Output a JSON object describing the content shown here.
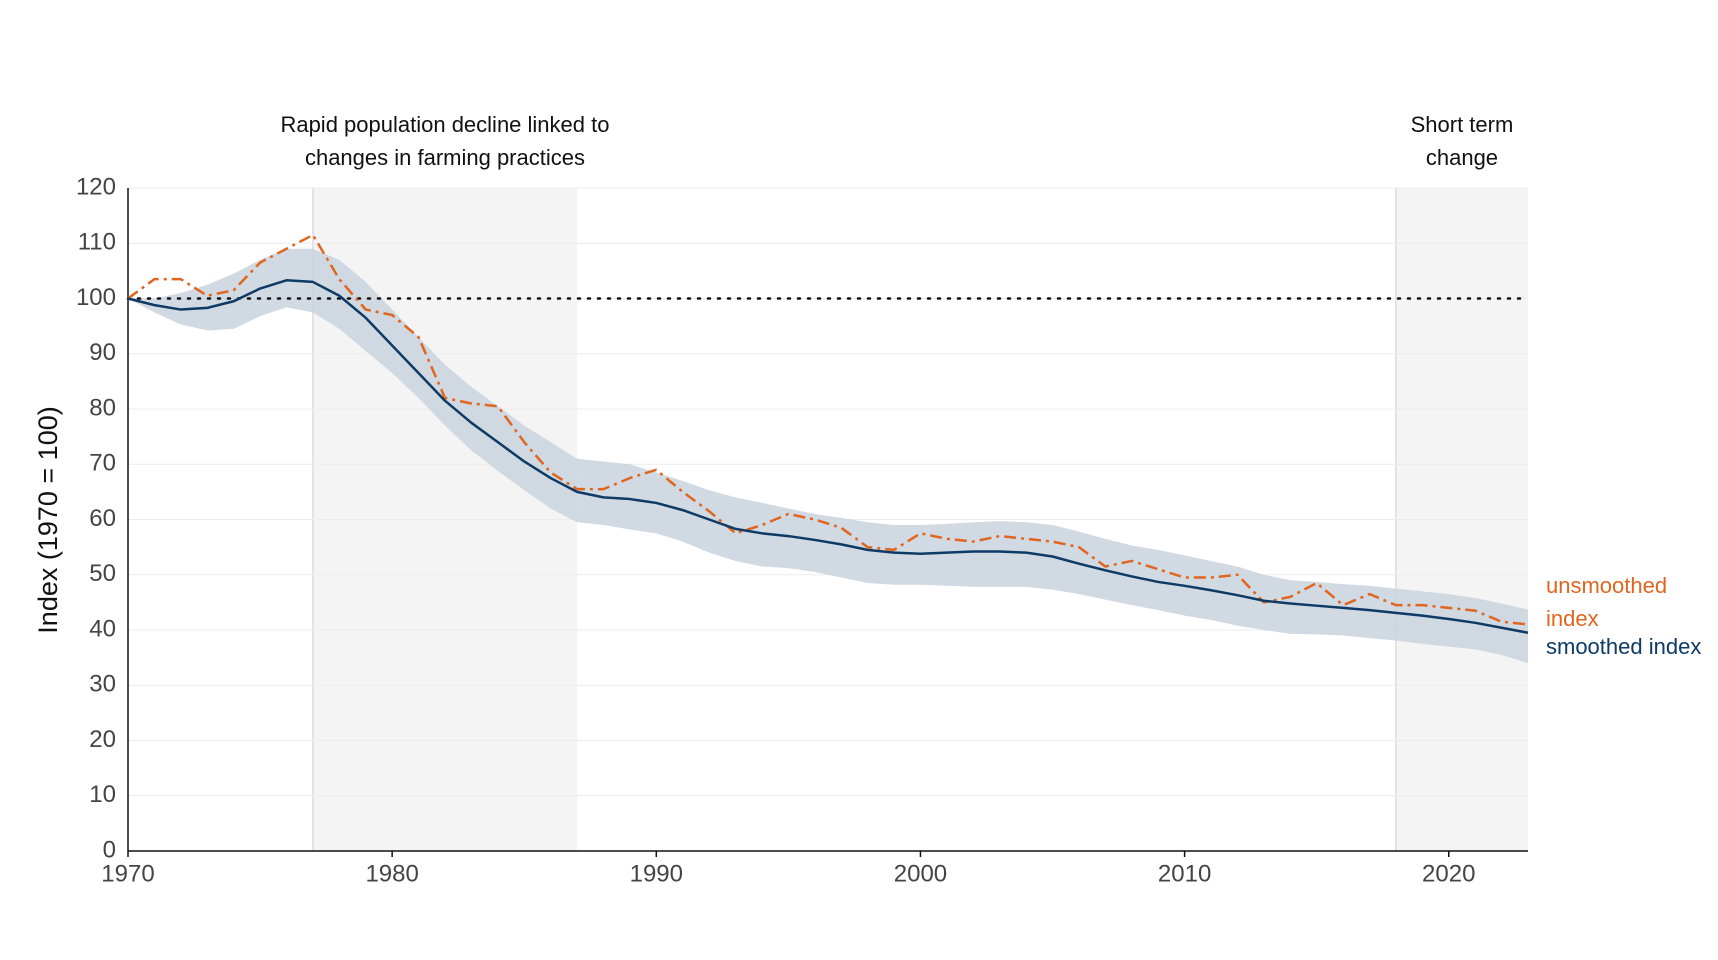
{
  "chart_data": {
    "type": "line",
    "y_label": "Index (1970 = 100)",
    "x": [
      1970,
      1971,
      1972,
      1973,
      1974,
      1975,
      1976,
      1977,
      1978,
      1979,
      1980,
      1981,
      1982,
      1983,
      1984,
      1985,
      1986,
      1987,
      1988,
      1989,
      1990,
      1991,
      1992,
      1993,
      1994,
      1995,
      1996,
      1997,
      1998,
      1999,
      2000,
      2001,
      2002,
      2003,
      2004,
      2005,
      2006,
      2007,
      2008,
      2009,
      2010,
      2011,
      2012,
      2013,
      2014,
      2015,
      2016,
      2017,
      2018,
      2019,
      2020,
      2021,
      2022,
      2023
    ],
    "series": [
      {
        "name": "unsmoothed index",
        "color": "#e0651f",
        "dash": true,
        "values": [
          100,
          103.5,
          103.5,
          100.5,
          101.5,
          106.5,
          109,
          111.5,
          103.5,
          98,
          97,
          93,
          82,
          81,
          80.5,
          74,
          68.5,
          65.5,
          65.5,
          67.5,
          69,
          65,
          61.5,
          57.5,
          59,
          61,
          60,
          58.5,
          55,
          54.5,
          57.5,
          56.5,
          56,
          57,
          56.5,
          56,
          55,
          51.5,
          52.5,
          51,
          49.5,
          49.5,
          50,
          45,
          46,
          48.5,
          44.5,
          46.5,
          44.5,
          44.5,
          44,
          43.5,
          41.5,
          41
        ]
      },
      {
        "name": "smoothed index",
        "color": "#0d3b66",
        "dash": false,
        "values": [
          100,
          98.8,
          98,
          98.3,
          99.5,
          101.8,
          103.3,
          103,
          100.5,
          96.5,
          91.5,
          86.5,
          81.5,
          77.5,
          74,
          70.5,
          67.5,
          65,
          64,
          63.7,
          63,
          61.7,
          60,
          58.3,
          57.5,
          57,
          56.3,
          55.5,
          54.5,
          54,
          53.8,
          54,
          54.2,
          54.2,
          54,
          53.3,
          52,
          50.8,
          49.7,
          48.7,
          48,
          47.2,
          46.3,
          45.3,
          44.8,
          44.4,
          44,
          43.6,
          43.1,
          42.6,
          42,
          41.3,
          40.4,
          39.5
        ]
      }
    ],
    "band_color": "#c9d3de",
    "band_upper": [
      100,
      100,
      101,
      102.5,
      104.5,
      107,
      109,
      109,
      107,
      103,
      98,
      93,
      88,
      84,
      80.5,
      77,
      74,
      71,
      70.5,
      70,
      68.5,
      67,
      65.3,
      64,
      63,
      62,
      61,
      60.3,
      59.5,
      59,
      59,
      59.2,
      59.5,
      59.7,
      59.5,
      59,
      57.8,
      56.5,
      55.3,
      54.5,
      53.5,
      52.5,
      51.5,
      50,
      49,
      48.7,
      48.3,
      48,
      47.5,
      47,
      46.5,
      45.8,
      44.8,
      43.7
    ],
    "band_lower": [
      100,
      97.5,
      95.3,
      94.2,
      94.5,
      96.8,
      98.4,
      97.5,
      94.5,
      90.5,
      86.5,
      82,
      77,
      72.5,
      68.8,
      65.3,
      62,
      59.5,
      59,
      58.2,
      57.5,
      56,
      54,
      52.5,
      51.5,
      51.2,
      50.5,
      49.5,
      48.5,
      48.2,
      48.2,
      48,
      47.8,
      47.8,
      47.8,
      47.3,
      46.5,
      45.5,
      44.5,
      43.6,
      42.6,
      41.8,
      40.8,
      40,
      39.3,
      39.2,
      39,
      38.5,
      38.1,
      37.5,
      37,
      36.5,
      35.5,
      34
    ],
    "reference_line": 100,
    "shaded_periods": [
      {
        "start": 1977,
        "end": 1987,
        "label": "Rapid population decline linked to changes in farming practices"
      },
      {
        "start": 2018,
        "end": 2023,
        "label": "Short term change"
      }
    ],
    "xlim": [
      1970,
      2023
    ],
    "xticks": [
      1970,
      1980,
      1990,
      2000,
      2010,
      2020
    ],
    "ylim": [
      0,
      120
    ],
    "yticks": [
      0,
      10,
      20,
      30,
      40,
      50,
      60,
      70,
      80,
      90,
      100,
      110,
      120
    ],
    "grid": true
  }
}
